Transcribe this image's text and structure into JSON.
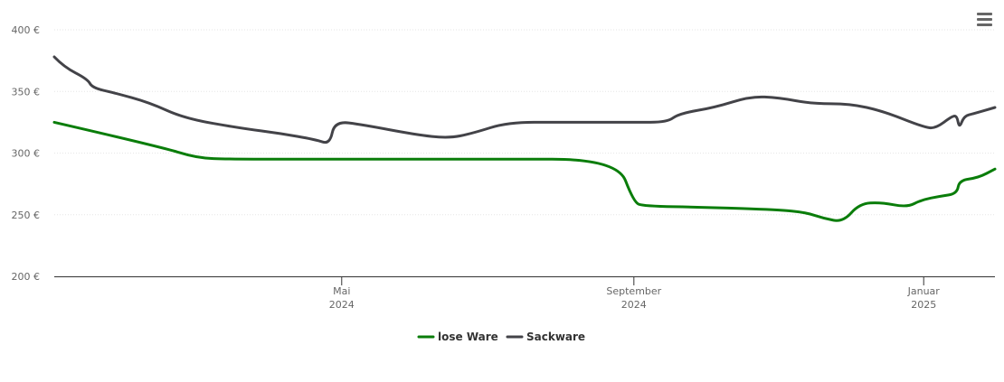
{
  "chart_data": {
    "type": "line",
    "title": "",
    "xlabel": "",
    "ylabel": "",
    "y_unit": "€",
    "ylim": [
      200,
      400
    ],
    "y_ticks": [
      {
        "value": 200,
        "label": "200 €"
      },
      {
        "value": 250,
        "label": "250 €"
      },
      {
        "value": 300,
        "label": "300 €"
      },
      {
        "value": 350,
        "label": "350 €"
      },
      {
        "value": 400,
        "label": "400 €"
      }
    ],
    "xlim": [
      "2024-01-01",
      "2025-01-31"
    ],
    "x_ticks": [
      {
        "date": "2024-05-01",
        "label1": "Mai",
        "label2": "2024"
      },
      {
        "date": "2024-09-01",
        "label1": "September",
        "label2": "2024"
      },
      {
        "date": "2025-01-01",
        "label1": "Januar",
        "label2": "2025"
      }
    ],
    "grid": true,
    "legend_position": "bottom-center",
    "series": [
      {
        "name": "lose Ware",
        "color": "#0a7d0a",
        "points": [
          [
            "2024-01-01",
            325
          ],
          [
            "2024-02-15",
            305
          ],
          [
            "2024-03-01",
            296
          ],
          [
            "2024-03-15",
            295
          ],
          [
            "2024-05-01",
            295
          ],
          [
            "2024-07-01",
            295
          ],
          [
            "2024-08-25",
            295
          ],
          [
            "2024-09-01",
            260
          ],
          [
            "2024-09-05",
            257
          ],
          [
            "2024-10-01",
            256
          ],
          [
            "2024-11-01",
            254
          ],
          [
            "2024-11-12",
            252
          ],
          [
            "2024-11-20",
            247
          ],
          [
            "2024-11-28",
            244
          ],
          [
            "2024-12-05",
            259
          ],
          [
            "2024-12-14",
            260
          ],
          [
            "2024-12-25",
            256
          ],
          [
            "2024-12-31",
            262
          ],
          [
            "2025-01-08",
            265
          ],
          [
            "2025-01-15",
            267
          ],
          [
            "2025-01-16",
            278
          ],
          [
            "2025-01-24",
            280
          ],
          [
            "2025-01-31",
            287
          ]
        ]
      },
      {
        "name": "Sackware",
        "color": "#434348",
        "points": [
          [
            "2024-01-01",
            378
          ],
          [
            "2024-01-05",
            370
          ],
          [
            "2024-01-15",
            360
          ],
          [
            "2024-01-17",
            353
          ],
          [
            "2024-01-26",
            349
          ],
          [
            "2024-02-10",
            341
          ],
          [
            "2024-02-25",
            328
          ],
          [
            "2024-03-20",
            320
          ],
          [
            "2024-04-05",
            316
          ],
          [
            "2024-04-20",
            311
          ],
          [
            "2024-04-26",
            307
          ],
          [
            "2024-04-28",
            326
          ],
          [
            "2024-05-10",
            323
          ],
          [
            "2024-06-01",
            315
          ],
          [
            "2024-06-15",
            312
          ],
          [
            "2024-06-25",
            316
          ],
          [
            "2024-07-10",
            325
          ],
          [
            "2024-08-01",
            325
          ],
          [
            "2024-09-01",
            325
          ],
          [
            "2024-09-15",
            325
          ],
          [
            "2024-09-20",
            332
          ],
          [
            "2024-10-05",
            337
          ],
          [
            "2024-10-20",
            346
          ],
          [
            "2024-11-01",
            345
          ],
          [
            "2024-11-15",
            340
          ],
          [
            "2024-12-01",
            340
          ],
          [
            "2024-12-15",
            334
          ],
          [
            "2025-01-01",
            321
          ],
          [
            "2025-01-06",
            320
          ],
          [
            "2025-01-13",
            330
          ],
          [
            "2025-01-15",
            330
          ],
          [
            "2025-01-16",
            320
          ],
          [
            "2025-01-18",
            330
          ],
          [
            "2025-01-22",
            332
          ],
          [
            "2025-01-31",
            337
          ]
        ]
      }
    ]
  },
  "menu": {
    "icon": "hamburger-menu-icon"
  }
}
